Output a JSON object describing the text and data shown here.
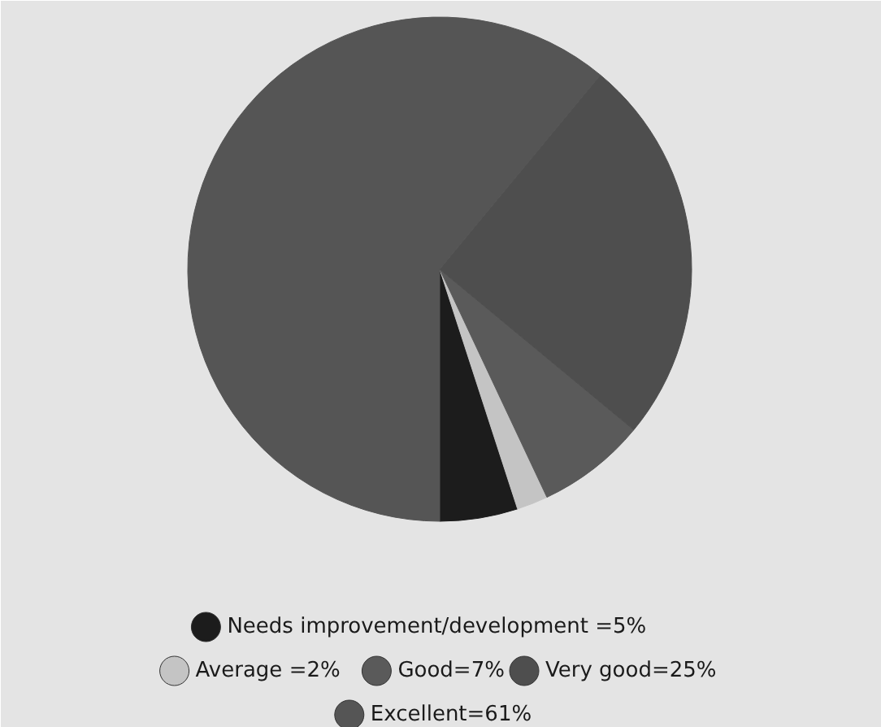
{
  "chart_data": {
    "type": "pie",
    "categories": [
      "Needs improvement/development  =5%",
      "Average =2%",
      "Good=7%",
      "Very good=25%",
      "Excellent=61%"
    ],
    "values": [
      5,
      2,
      7,
      25,
      61
    ],
    "colors": [
      "#1c1c1c",
      "#c4c4c4",
      "#5a5a5a",
      "#4e4e4e",
      "#555555"
    ],
    "legend": "bottom"
  }
}
